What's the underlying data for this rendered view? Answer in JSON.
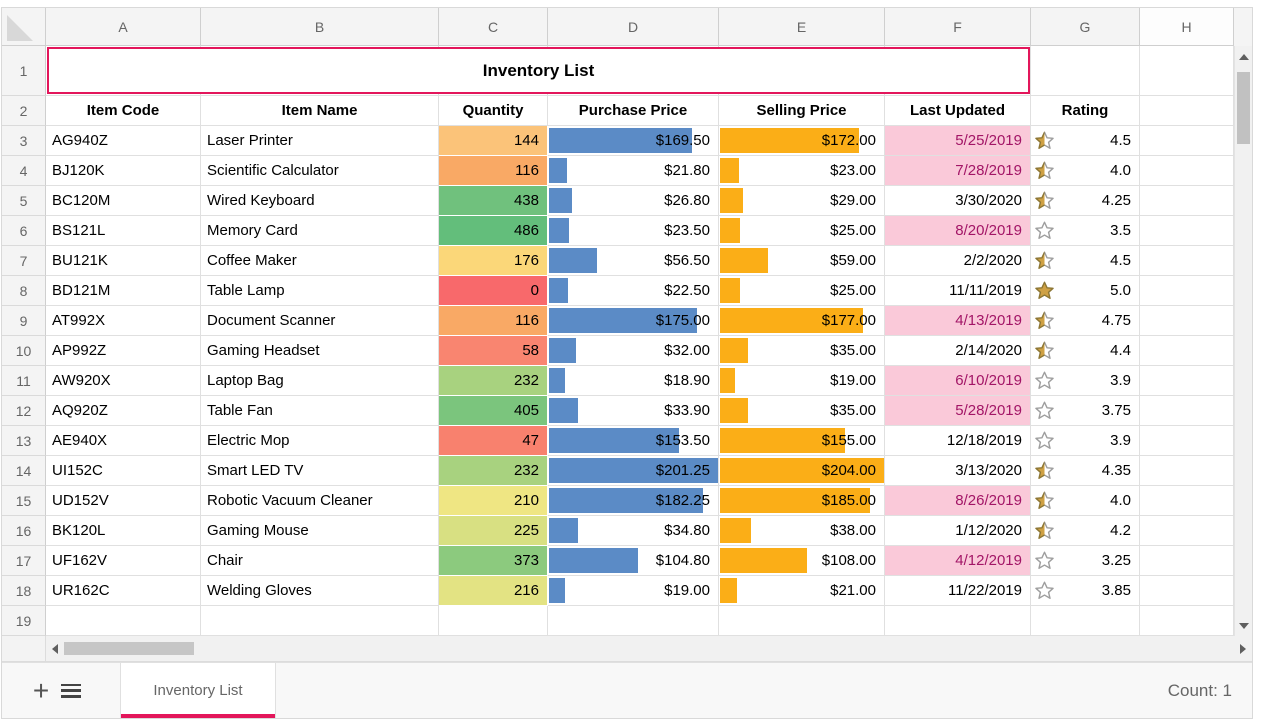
{
  "spreadsheet": {
    "column_letters": [
      "A",
      "B",
      "C",
      "D",
      "E",
      "F",
      "G",
      "H"
    ],
    "row_numbers": [
      1,
      2,
      3,
      4,
      5,
      6,
      7,
      8,
      9,
      10,
      11,
      12,
      13,
      14,
      15,
      16,
      17,
      18,
      19
    ],
    "title_cell": {
      "text": "Inventory List"
    },
    "column_headers": [
      "Item Code",
      "Item Name",
      "Quantity",
      "Purchase Price",
      "Selling Price",
      "Last Updated",
      "Rating"
    ],
    "rows": [
      {
        "row": 3,
        "item_code": "AG940Z",
        "item_name": "Laser Printer",
        "quantity": "144",
        "quantity_color": "#FBC379",
        "purchase_price": "$169.50",
        "purchase_value": 169.5,
        "selling_price": "$172.00",
        "selling_value": 172,
        "last_updated": "5/25/2019",
        "date_highlight": true,
        "rating": "4.5",
        "rating_value": 4.5
      },
      {
        "row": 4,
        "item_code": "BJ120K",
        "item_name": "Scientific Calculator",
        "quantity": "116",
        "quantity_color": "#F9A965",
        "purchase_price": "$21.80",
        "purchase_value": 21.8,
        "selling_price": "$23.00",
        "selling_value": 23,
        "last_updated": "7/28/2019",
        "date_highlight": true,
        "rating": "4.0",
        "rating_value": 4.0
      },
      {
        "row": 5,
        "item_code": "BC120M",
        "item_name": "Wired Keyboard",
        "quantity": "438",
        "quantity_color": "#70C17D",
        "purchase_price": "$26.80",
        "purchase_value": 26.8,
        "selling_price": "$29.00",
        "selling_value": 29,
        "last_updated": "3/30/2020",
        "date_highlight": false,
        "rating": "4.25",
        "rating_value": 4.25
      },
      {
        "row": 6,
        "item_code": "BS121L",
        "item_name": "Memory Card",
        "quantity": "486",
        "quantity_color": "#63BE7B",
        "purchase_price": "$23.50",
        "purchase_value": 23.5,
        "selling_price": "$25.00",
        "selling_value": 25,
        "last_updated": "8/20/2019",
        "date_highlight": true,
        "rating": "3.5",
        "rating_value": 3.5
      },
      {
        "row": 7,
        "item_code": "BU121K",
        "item_name": "Coffee Maker",
        "quantity": "176",
        "quantity_color": "#FBD779",
        "purchase_price": "$56.50",
        "purchase_value": 56.5,
        "selling_price": "$59.00",
        "selling_value": 59,
        "last_updated": "2/2/2020",
        "date_highlight": false,
        "rating": "4.5",
        "rating_value": 4.5
      },
      {
        "row": 8,
        "item_code": "BD121M",
        "item_name": "Table Lamp",
        "quantity": "0",
        "quantity_color": "#F8696B",
        "purchase_price": "$22.50",
        "purchase_value": 22.5,
        "selling_price": "$25.00",
        "selling_value": 25,
        "last_updated": "11/11/2019",
        "date_highlight": false,
        "rating": "5.0",
        "rating_value": 5.0
      },
      {
        "row": 9,
        "item_code": "AT992X",
        "item_name": "Document Scanner",
        "quantity": "116",
        "quantity_color": "#F9A965",
        "purchase_price": "$175.00",
        "purchase_value": 175,
        "selling_price": "$177.00",
        "selling_value": 177,
        "last_updated": "4/13/2019",
        "date_highlight": true,
        "rating": "4.75",
        "rating_value": 4.75
      },
      {
        "row": 10,
        "item_code": "AP992Z",
        "item_name": "Gaming Headset",
        "quantity": "58",
        "quantity_color": "#F98570",
        "purchase_price": "$32.00",
        "purchase_value": 32,
        "selling_price": "$35.00",
        "selling_value": 35,
        "last_updated": "2/14/2020",
        "date_highlight": false,
        "rating": "4.4",
        "rating_value": 4.4
      },
      {
        "row": 11,
        "item_code": "AW920X",
        "item_name": "Laptop Bag",
        "quantity": "232",
        "quantity_color": "#A8D27F",
        "purchase_price": "$18.90",
        "purchase_value": 18.9,
        "selling_price": "$19.00",
        "selling_value": 19,
        "last_updated": "6/10/2019",
        "date_highlight": true,
        "rating": "3.9",
        "rating_value": 3.9
      },
      {
        "row": 12,
        "item_code": "AQ920Z",
        "item_name": "Table Fan",
        "quantity": "405",
        "quantity_color": "#7BC57D",
        "purchase_price": "$33.90",
        "purchase_value": 33.9,
        "selling_price": "$35.00",
        "selling_value": 35,
        "last_updated": "5/28/2019",
        "date_highlight": true,
        "rating": "3.75",
        "rating_value": 3.75
      },
      {
        "row": 13,
        "item_code": "AE940X",
        "item_name": "Electric Mop",
        "quantity": "47",
        "quantity_color": "#F8816E",
        "purchase_price": "$153.50",
        "purchase_value": 153.5,
        "selling_price": "$155.00",
        "selling_value": 155,
        "last_updated": "12/18/2019",
        "date_highlight": false,
        "rating": "3.9",
        "rating_value": 3.9
      },
      {
        "row": 14,
        "item_code": "UI152C",
        "item_name": "Smart LED TV",
        "quantity": "232",
        "quantity_color": "#A8D27F",
        "purchase_price": "$201.25",
        "purchase_value": 201.25,
        "selling_price": "$204.00",
        "selling_value": 204,
        "last_updated": "3/13/2020",
        "date_highlight": false,
        "rating": "4.35",
        "rating_value": 4.35
      },
      {
        "row": 15,
        "item_code": "UD152V",
        "item_name": "Robotic Vacuum Cleaner",
        "quantity": "210",
        "quantity_color": "#EFE683",
        "purchase_price": "$182.25",
        "purchase_value": 182.25,
        "selling_price": "$185.00",
        "selling_value": 185,
        "last_updated": "8/26/2019",
        "date_highlight": true,
        "rating": "4.0",
        "rating_value": 4.0
      },
      {
        "row": 16,
        "item_code": "BK120L",
        "item_name": "Gaming Mouse",
        "quantity": "225",
        "quantity_color": "#D8E082",
        "purchase_price": "$34.80",
        "purchase_value": 34.8,
        "selling_price": "$38.00",
        "selling_value": 38,
        "last_updated": "1/12/2020",
        "date_highlight": false,
        "rating": "4.2",
        "rating_value": 4.2
      },
      {
        "row": 17,
        "item_code": "UF162V",
        "item_name": "Chair",
        "quantity": "373",
        "quantity_color": "#8CCA7E",
        "purchase_price": "$104.80",
        "purchase_value": 104.8,
        "selling_price": "$108.00",
        "selling_value": 108,
        "last_updated": "4/12/2019",
        "date_highlight": true,
        "rating": "3.25",
        "rating_value": 3.25
      },
      {
        "row": 18,
        "item_code": "UR162C",
        "item_name": "Welding Gloves",
        "quantity": "216",
        "quantity_color": "#E3E383",
        "purchase_price": "$19.00",
        "purchase_value": 19,
        "selling_price": "$21.00",
        "selling_value": 21,
        "last_updated": "11/22/2019",
        "date_highlight": false,
        "rating": "3.85",
        "rating_value": 3.85
      }
    ],
    "colors": {
      "accent_pink": "#e3165b",
      "purchase_bar": "#5b8bc6",
      "selling_bar": "#fbae17",
      "date_highlight_bg": "#fac9d9",
      "date_highlight_text": "#a21566",
      "star_gold": "#cfa144",
      "star_gold_outline": "#8c7634",
      "star_empty_outline": "#9e9e9e"
    },
    "sheet_bar": {
      "add_icon_glyph": "+",
      "tab_label": "Inventory List",
      "count_label": "Count: 1"
    }
  }
}
